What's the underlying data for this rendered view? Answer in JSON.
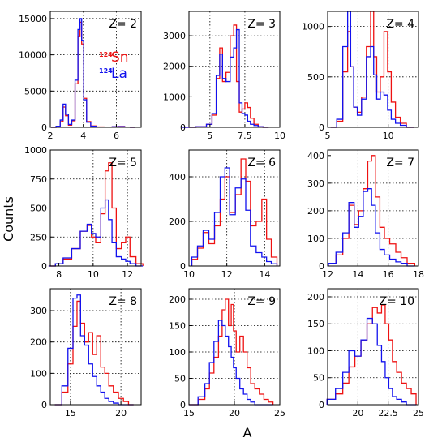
{
  "figure": {
    "ylabel": "Counts",
    "xlabel": "A",
    "legend": {
      "items": [
        {
          "sup": "124",
          "name": "Sn",
          "color": "#ee1111"
        },
        {
          "sup": "124",
          "name": "La",
          "color": "#1111ee"
        }
      ]
    }
  },
  "colors": {
    "sn": "#ee1111",
    "la": "#1111ee",
    "grid": "#000000",
    "axis": "#000000"
  },
  "chart_data": [
    {
      "type": "line",
      "title": "Z= 2",
      "xlim": [
        2,
        7.5
      ],
      "ylim": [
        0,
        16000
      ],
      "xticks": [
        2,
        4,
        6
      ],
      "yticks": [
        0,
        5000,
        10000,
        15000
      ],
      "xgrid": [
        4,
        6
      ],
      "ygrid": [
        5000,
        10000,
        15000
      ],
      "series": [
        {
          "name": "Sn",
          "x": [
            2.2,
            2.5,
            2.7,
            2.85,
            3.0,
            3.2,
            3.4,
            3.6,
            3.75,
            3.85,
            3.95,
            4.1,
            4.3,
            4.6,
            5.0,
            5.5,
            6.0,
            6.3,
            6.7,
            7.0
          ],
          "y": [
            0,
            100,
            800,
            2800,
            1600,
            300,
            900,
            6000,
            12500,
            14500,
            11500,
            4000,
            800,
            200,
            50,
            20,
            100,
            120,
            30,
            0
          ]
        },
        {
          "name": "La",
          "x": [
            2.2,
            2.5,
            2.7,
            2.85,
            3.0,
            3.2,
            3.4,
            3.6,
            3.75,
            3.85,
            3.95,
            4.1,
            4.3,
            4.6,
            5.0,
            5.5,
            6.0,
            6.3,
            6.7,
            7.0
          ],
          "y": [
            0,
            150,
            1000,
            3200,
            1800,
            400,
            1000,
            6500,
            13500,
            15000,
            12000,
            3800,
            700,
            150,
            40,
            20,
            80,
            100,
            20,
            0
          ]
        }
      ]
    },
    {
      "type": "line",
      "title": "Z= 3",
      "xlim": [
        3.5,
        10
      ],
      "ylim": [
        0,
        3800
      ],
      "xticks": [
        5,
        7.5,
        10
      ],
      "yticks": [
        0,
        1000,
        2000,
        3000
      ],
      "xgrid": [
        5,
        7.5
      ],
      "ygrid": [
        1000,
        2000,
        3000
      ],
      "series": [
        {
          "name": "Sn",
          "x": [
            3.5,
            4.5,
            5.0,
            5.3,
            5.6,
            5.8,
            6.0,
            6.3,
            6.6,
            6.8,
            7.0,
            7.2,
            7.4,
            7.6,
            7.8,
            8.0,
            8.3,
            8.6,
            9.0
          ],
          "y": [
            0,
            20,
            100,
            400,
            1600,
            2600,
            1500,
            1800,
            3000,
            3350,
            1500,
            500,
            600,
            800,
            650,
            300,
            100,
            20,
            0
          ]
        },
        {
          "name": "La",
          "x": [
            3.5,
            4.5,
            5.0,
            5.3,
            5.6,
            5.8,
            6.0,
            6.3,
            6.6,
            6.8,
            7.0,
            7.2,
            7.4,
            7.6,
            7.8,
            8.0,
            8.3,
            8.6,
            9.0
          ],
          "y": [
            0,
            20,
            100,
            450,
            1700,
            2400,
            1600,
            1500,
            2300,
            2600,
            3200,
            800,
            450,
            400,
            200,
            100,
            60,
            20,
            0
          ]
        }
      ]
    },
    {
      "type": "line",
      "title": "Z= 4",
      "xlim": [
        5,
        12.5
      ],
      "ylim": [
        0,
        1150
      ],
      "xticks": [
        5,
        10
      ],
      "yticks": [
        0,
        500,
        1000
      ],
      "xgrid": [
        7.5,
        10
      ],
      "ygrid": [
        500,
        1000
      ],
      "series": [
        {
          "name": "Sn",
          "x": [
            5.5,
            6.0,
            6.5,
            6.8,
            7.0,
            7.3,
            7.6,
            8.0,
            8.4,
            8.7,
            8.9,
            9.2,
            9.5,
            9.8,
            10.1,
            10.4,
            10.8,
            11.2,
            11.8
          ],
          "y": [
            0,
            60,
            550,
            950,
            600,
            200,
            150,
            300,
            800,
            1150,
            700,
            350,
            500,
            950,
            550,
            250,
            100,
            40,
            0
          ]
        },
        {
          "name": "La",
          "x": [
            5.5,
            6.0,
            6.5,
            6.8,
            7.0,
            7.3,
            7.6,
            8.0,
            8.4,
            8.7,
            8.9,
            9.2,
            9.5,
            9.8,
            10.1,
            10.4,
            10.8,
            11.2,
            11.8
          ],
          "y": [
            0,
            80,
            800,
            1150,
            600,
            200,
            120,
            280,
            700,
            800,
            520,
            280,
            350,
            320,
            170,
            80,
            40,
            20,
            0
          ]
        }
      ]
    },
    {
      "type": "line",
      "title": "Z= 5",
      "xlim": [
        7.5,
        12.8
      ],
      "ylim": [
        0,
        1000
      ],
      "xticks": [
        8,
        10,
        12
      ],
      "yticks": [
        0,
        250,
        500,
        750,
        1000
      ],
      "xgrid": [
        10,
        12
      ],
      "ygrid": [
        250,
        500,
        750
      ],
      "series": [
        {
          "name": "Sn",
          "x": [
            7.6,
            8.0,
            8.5,
            9.0,
            9.5,
            9.8,
            10.0,
            10.3,
            10.6,
            10.8,
            11.0,
            11.2,
            11.5,
            11.8,
            12.0,
            12.3,
            12.7
          ],
          "y": [
            0,
            20,
            60,
            150,
            300,
            350,
            250,
            200,
            450,
            820,
            890,
            500,
            150,
            200,
            250,
            80,
            20
          ]
        },
        {
          "name": "La",
          "x": [
            7.6,
            8.0,
            8.5,
            9.0,
            9.5,
            9.8,
            10.0,
            10.3,
            10.6,
            10.8,
            11.0,
            11.2,
            11.5,
            11.8,
            12.0,
            12.3,
            12.7
          ],
          "y": [
            0,
            20,
            70,
            150,
            300,
            360,
            280,
            250,
            500,
            570,
            400,
            200,
            80,
            60,
            40,
            20,
            0
          ]
        }
      ]
    },
    {
      "type": "line",
      "title": "Z= 6",
      "xlim": [
        10,
        14.8
      ],
      "ylim": [
        0,
        520
      ],
      "xticks": [
        10,
        12,
        14
      ],
      "yticks": [
        0,
        200,
        400
      ],
      "xgrid": [
        12,
        14
      ],
      "ygrid": [
        200,
        400
      ],
      "series": [
        {
          "name": "Sn",
          "x": [
            10.3,
            10.6,
            10.9,
            11.2,
            11.5,
            11.8,
            12.0,
            12.3,
            12.6,
            12.9,
            13.1,
            13.4,
            13.7,
            14.0,
            14.2,
            14.5
          ],
          "y": [
            30,
            80,
            150,
            100,
            180,
            300,
            400,
            240,
            320,
            480,
            380,
            180,
            200,
            300,
            120,
            40
          ]
        },
        {
          "name": "La",
          "x": [
            10.3,
            10.6,
            10.9,
            11.2,
            11.5,
            11.8,
            12.0,
            12.3,
            12.6,
            12.9,
            13.1,
            13.4,
            13.7,
            14.0,
            14.2,
            14.5
          ],
          "y": [
            40,
            90,
            160,
            120,
            240,
            400,
            440,
            230,
            350,
            390,
            250,
            90,
            60,
            40,
            20,
            10
          ]
        }
      ]
    },
    {
      "type": "line",
      "title": "Z= 7",
      "xlim": [
        12,
        18
      ],
      "ylim": [
        0,
        420
      ],
      "xticks": [
        12,
        14,
        16,
        18
      ],
      "yticks": [
        0,
        100,
        200,
        300,
        400
      ],
      "xgrid": [
        14,
        16
      ],
      "ygrid": [
        100,
        200,
        300
      ],
      "series": [
        {
          "name": "Sn",
          "x": [
            12.3,
            12.8,
            13.2,
            13.6,
            13.9,
            14.2,
            14.5,
            14.8,
            15.0,
            15.3,
            15.6,
            15.9,
            16.3,
            16.7,
            17.0,
            17.5
          ],
          "y": [
            10,
            40,
            100,
            220,
            150,
            200,
            280,
            380,
            400,
            250,
            140,
            100,
            80,
            50,
            30,
            10
          ]
        },
        {
          "name": "La",
          "x": [
            12.3,
            12.8,
            13.2,
            13.6,
            13.9,
            14.2,
            14.5,
            14.8,
            15.0,
            15.3,
            15.6,
            15.9,
            16.3,
            16.7,
            17.0,
            17.5
          ],
          "y": [
            10,
            50,
            120,
            230,
            140,
            180,
            270,
            280,
            220,
            120,
            60,
            40,
            25,
            15,
            10,
            0
          ]
        }
      ]
    },
    {
      "type": "line",
      "title": "Z= 8",
      "xlim": [
        13,
        22
      ],
      "ylim": [
        0,
        370
      ],
      "xticks": [
        15,
        20
      ],
      "yticks": [
        0,
        100,
        200,
        300
      ],
      "xgrid": [
        15,
        20
      ],
      "ygrid": [
        100,
        200,
        300
      ],
      "series": [
        {
          "name": "Sn",
          "x": [
            13.8,
            14.5,
            15.0,
            15.5,
            15.8,
            16.2,
            16.6,
            17.0,
            17.4,
            17.8,
            18.2,
            18.6,
            19.0,
            19.5,
            20.0,
            20.5,
            21.0
          ],
          "y": [
            0,
            40,
            130,
            250,
            330,
            260,
            200,
            230,
            160,
            220,
            120,
            100,
            60,
            40,
            20,
            10,
            0
          ]
        },
        {
          "name": "La",
          "x": [
            13.8,
            14.5,
            15.0,
            15.5,
            15.8,
            16.2,
            16.6,
            17.0,
            17.4,
            17.8,
            18.2,
            18.6,
            19.0,
            19.5,
            20.0,
            20.5,
            21.0
          ],
          "y": [
            0,
            60,
            180,
            340,
            350,
            220,
            190,
            130,
            90,
            60,
            40,
            20,
            10,
            5,
            0,
            0,
            0
          ]
        }
      ]
    },
    {
      "type": "line",
      "title": "Z= 9",
      "xlim": [
        15,
        25
      ],
      "ylim": [
        0,
        220
      ],
      "xticks": [
        15,
        20,
        25
      ],
      "yticks": [
        0,
        50,
        100,
        150,
        200
      ],
      "xgrid": [
        20
      ],
      "ygrid": [
        50,
        100,
        150,
        200
      ],
      "series": [
        {
          "name": "Sn",
          "x": [
            15.5,
            16.5,
            17.0,
            17.5,
            18.0,
            18.5,
            18.8,
            19.2,
            19.5,
            19.8,
            20.0,
            20.4,
            20.8,
            21.2,
            21.6,
            22.0,
            22.5,
            23.0,
            23.5,
            24.0
          ],
          "y": [
            0,
            10,
            30,
            60,
            90,
            130,
            180,
            200,
            150,
            190,
            140,
            100,
            130,
            100,
            70,
            40,
            30,
            20,
            10,
            5
          ]
        },
        {
          "name": "La",
          "x": [
            15.5,
            16.5,
            17.0,
            17.5,
            18.0,
            18.5,
            18.8,
            19.2,
            19.5,
            19.8,
            20.0,
            20.4,
            20.8,
            21.2,
            21.6,
            22.0,
            22.5,
            23.0,
            23.5,
            24.0
          ],
          "y": [
            0,
            15,
            40,
            80,
            120,
            160,
            150,
            130,
            110,
            90,
            70,
            50,
            30,
            20,
            10,
            5,
            0,
            0,
            0,
            0
          ]
        }
      ]
    },
    {
      "type": "line",
      "title": "Z= 10",
      "xlim": [
        17.5,
        25
      ],
      "ylim": [
        0,
        215
      ],
      "xticks": [
        20,
        22.5,
        25
      ],
      "yticks": [
        0,
        50,
        100,
        150,
        200
      ],
      "xgrid": [
        20,
        22.5
      ],
      "ygrid": [
        50,
        100,
        150,
        200
      ],
      "series": [
        {
          "name": "Sn",
          "x": [
            17.8,
            18.5,
            19.0,
            19.5,
            20.0,
            20.5,
            21.0,
            21.4,
            21.8,
            22.1,
            22.4,
            22.7,
            23.0,
            23.4,
            23.8,
            24.2,
            24.6
          ],
          "y": [
            10,
            20,
            40,
            70,
            90,
            120,
            150,
            180,
            170,
            185,
            150,
            120,
            80,
            60,
            40,
            30,
            20
          ]
        },
        {
          "name": "La",
          "x": [
            17.8,
            18.5,
            19.0,
            19.5,
            20.0,
            20.5,
            21.0,
            21.4,
            21.8,
            22.1,
            22.4,
            22.7,
            23.0,
            23.4,
            23.8,
            24.2,
            24.6
          ],
          "y": [
            10,
            30,
            60,
            100,
            90,
            120,
            160,
            150,
            110,
            80,
            50,
            30,
            15,
            10,
            5,
            0,
            0
          ]
        }
      ]
    }
  ]
}
